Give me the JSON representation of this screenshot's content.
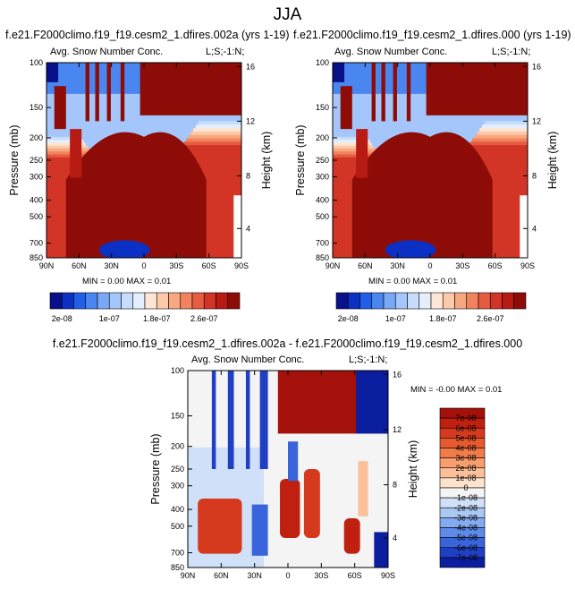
{
  "header": {
    "title": "JJA"
  },
  "panels": [
    {
      "case_title": "f.e21.F2000climo.f19_f19.cesm2_1.dfires.002a (yrs 1-19)",
      "plot_title": "Avg. Snow Number Conc.",
      "corner_label": "L;S;-1:N;",
      "minmax": "MIN =  0.00   MAX =  0.01"
    },
    {
      "case_title": "f.e21.F2000climo.f19_f19.cesm2_1.dfires.000 (yrs 1-19)",
      "plot_title": "Avg. Snow Number Conc.",
      "corner_label": "L;S;-1:N;",
      "minmax": "MIN =  0.00   MAX =  0.01"
    },
    {
      "case_title": "f.e21.F2000climo.f19_f19.cesm2_1.dfires.002a - f.e21.F2000climo.f19_f19.cesm2_1.dfires.000",
      "plot_title": "Avg. Snow Number Conc.",
      "corner_label": "L;S;-1:N;",
      "minmax": "MIN = -0.00   MAX =  0.01"
    }
  ],
  "chart_data": [
    {
      "type": "heatmap",
      "title": "Avg. Snow Number Conc.",
      "xlabel": "",
      "ylabel": "Pressure (mb)",
      "y2label": "Height (km)",
      "x_ticks": [
        "90N",
        "60N",
        "30N",
        "0",
        "30S",
        "60S",
        "90S"
      ],
      "y_ticks": [
        "100",
        "150",
        "200",
        "250",
        "300",
        "400",
        "500",
        "700",
        "850"
      ],
      "y2_ticks": [
        "16",
        "12",
        "8",
        "4"
      ],
      "colorbar_labels": [
        "2e-08",
        "1e-07",
        "1.8e-07",
        "2.6e-07"
      ],
      "colorbar_colors": [
        "#08108a",
        "#0c2fc4",
        "#2060e8",
        "#4a86f0",
        "#78a8f6",
        "#a4c6fa",
        "#c8dcfc",
        "#e4eefd",
        "#fde6d4",
        "#fccaa8",
        "#f8a880",
        "#f2835e",
        "#e65c40",
        "#d23426",
        "#b81a14",
        "#8e0c08"
      ]
    },
    {
      "type": "heatmap",
      "title": "Avg. Snow Number Conc.",
      "xlabel": "",
      "ylabel": "Pressure (mb)",
      "y2label": "Height (km)",
      "x_ticks": [
        "90N",
        "60N",
        "30N",
        "0",
        "30S",
        "60S",
        "90S"
      ],
      "y_ticks": [
        "100",
        "150",
        "200",
        "250",
        "300",
        "400",
        "500",
        "700",
        "850"
      ],
      "y2_ticks": [
        "16",
        "12",
        "8",
        "4"
      ],
      "colorbar_labels": [
        "2e-08",
        "1e-07",
        "1.8e-07",
        "2.6e-07"
      ],
      "colorbar_colors": [
        "#08108a",
        "#0c2fc4",
        "#2060e8",
        "#4a86f0",
        "#78a8f6",
        "#a4c6fa",
        "#c8dcfc",
        "#e4eefd",
        "#fde6d4",
        "#fccaa8",
        "#f8a880",
        "#f2835e",
        "#e65c40",
        "#d23426",
        "#b81a14",
        "#8e0c08"
      ]
    },
    {
      "type": "heatmap",
      "title": "Avg. Snow Number Conc.",
      "xlabel": "",
      "ylabel": "Pressure (mb)",
      "y2label": "Height (km)",
      "x_ticks": [
        "90N",
        "60N",
        "30N",
        "0",
        "30S",
        "60S",
        "90S"
      ],
      "y_ticks": [
        "100",
        "150",
        "200",
        "250",
        "300",
        "400",
        "500",
        "700",
        "850"
      ],
      "y2_ticks": [
        "16",
        "12",
        "8",
        "4"
      ],
      "colorbar_labels": [
        "7e-08",
        "6e-08",
        "5e-08",
        "4e-08",
        "3e-08",
        "2e-08",
        "1e-08",
        "0",
        "-1e-08",
        "-2e-08",
        "-3e-08",
        "-4e-08",
        "-5e-08",
        "-6e-08",
        "-7e-08"
      ],
      "colorbar_colors": [
        "#a3110a",
        "#c0200f",
        "#d63a1e",
        "#e8592f",
        "#f27b4a",
        "#f89d6e",
        "#fbc09a",
        "#fde2cc",
        "#f4f4f4",
        "#cfe0f8",
        "#aac8f4",
        "#84aaf0",
        "#5e8aea",
        "#3a64dc",
        "#2040c4",
        "#0c1ea0"
      ]
    }
  ]
}
